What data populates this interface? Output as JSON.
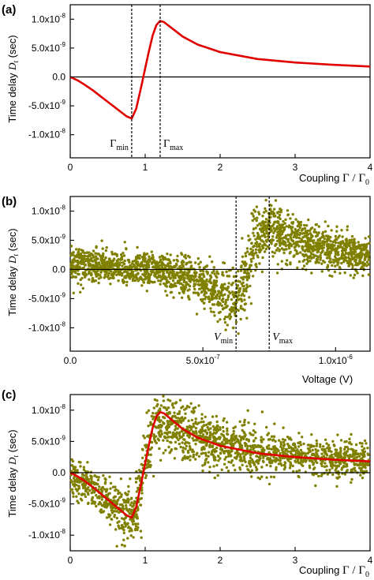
{
  "colors": {
    "curve": "#e00000",
    "points": "#808000",
    "axis": "#000000"
  },
  "chart_data": [
    {
      "panel": "(a)",
      "type": "line",
      "ylabel": "Time delay",
      "ylabel_symbol": "D",
      "ylabel_sub": "t",
      "ylabel_unit": "(sec)",
      "xlabel": "Coupling",
      "xlabel_symbol": "Γ / Γ",
      "xlabel_sub": "0",
      "xlim": [
        0,
        4
      ],
      "ylim": [
        -1.4e-08,
        1.25e-08
      ],
      "xticks": [
        {
          "v": 0,
          "label": "0"
        },
        {
          "v": 1,
          "label": "1"
        },
        {
          "v": 2,
          "label": "2"
        },
        {
          "v": 3,
          "label": "3"
        },
        {
          "v": 4,
          "label": "4"
        }
      ],
      "yticks": [
        {
          "v": 1e-08,
          "label": "1.0x10",
          "exp": "-8"
        },
        {
          "v": 5e-09,
          "label": "5.0x10",
          "exp": "-9"
        },
        {
          "v": 0,
          "label": "0.0",
          "exp": ""
        },
        {
          "v": -5e-09,
          "label": "-5.0x10",
          "exp": "-9"
        },
        {
          "v": -1e-08,
          "label": "-1.0x10",
          "exp": "-8"
        }
      ],
      "vlines": [
        {
          "x": 0.82,
          "label": "Γ",
          "sub": "min",
          "label_side": "left"
        },
        {
          "x": 1.2,
          "label": "Γ",
          "sub": "max",
          "label_side": "right"
        }
      ],
      "series": [
        {
          "style": "line",
          "x": [
            0,
            0.1,
            0.2,
            0.3,
            0.4,
            0.5,
            0.6,
            0.7,
            0.75,
            0.82,
            0.88,
            0.95,
            1.0,
            1.05,
            1.1,
            1.15,
            1.2,
            1.25,
            1.35,
            1.5,
            1.7,
            2.0,
            2.5,
            3.0,
            3.5,
            4.0
          ],
          "y": [
            0,
            -6e-10,
            -1.4e-09,
            -2.3e-09,
            -3.3e-09,
            -4.3e-09,
            -5.3e-09,
            -6.3e-09,
            -6.8e-09,
            -7.2e-09,
            -5.5e-09,
            -1.5e-09,
            1.5e-09,
            4.5e-09,
            7.2e-09,
            9e-09,
            9.7e-09,
            9.5e-09,
            8.5e-09,
            7e-09,
            5.6e-09,
            4.3e-09,
            3.1e-09,
            2.5e-09,
            2.1e-09,
            1.8e-09
          ]
        }
      ]
    },
    {
      "panel": "(b)",
      "type": "scatter",
      "ylabel": "Time delay",
      "ylabel_symbol": "D",
      "ylabel_sub": "t",
      "ylabel_unit": "(sec)",
      "xlabel": "Voltage (V)",
      "xlim": [
        0,
        1.13e-06
      ],
      "ylim": [
        -1.4e-08,
        1.25e-08
      ],
      "xticks": [
        {
          "v": 0,
          "label": "0.0",
          "exp": ""
        },
        {
          "v": 5e-07,
          "label": "5.0x10",
          "exp": "-7"
        },
        {
          "v": 1e-06,
          "label": "1.0x10",
          "exp": "-6"
        }
      ],
      "yticks": [
        {
          "v": 1e-08,
          "label": "1.0x10",
          "exp": "-8"
        },
        {
          "v": 5e-09,
          "label": "5.0x10",
          "exp": "-9"
        },
        {
          "v": 0,
          "label": "0.0",
          "exp": ""
        },
        {
          "v": -5e-09,
          "label": "-5.0x10",
          "exp": "-9"
        },
        {
          "v": -1e-08,
          "label": "-1.0x10",
          "exp": "-8"
        }
      ],
      "vlines": [
        {
          "x": 6.25e-07,
          "label": "V",
          "sub": "min",
          "label_side": "left"
        },
        {
          "x": 7.5e-07,
          "label": "V",
          "sub": "max",
          "label_side": "right"
        }
      ],
      "series": [
        {
          "style": "points",
          "x": [
            0,
            5e-08,
            1e-07,
            1.5e-07,
            2e-07,
            2.5e-07,
            3e-07,
            3.5e-07,
            4e-07,
            4.5e-07,
            5e-07,
            5.5e-07,
            6e-07,
            6.25e-07,
            6.5e-07,
            6.75e-07,
            7e-07,
            7.25e-07,
            7.5e-07,
            7.75e-07,
            8e-07,
            8.5e-07,
            9e-07,
            9.5e-07,
            1e-06,
            1.05e-06,
            1.1e-06,
            1.13e-06
          ],
          "y": [
            1e-09,
            8e-10,
            6e-10,
            4e-10,
            2e-10,
            0,
            -2e-10,
            -5e-10,
            -1e-09,
            -1.6e-09,
            -2.5e-09,
            -3.6e-09,
            -5e-09,
            -6e-09,
            -3e-09,
            1e-09,
            4.5e-09,
            7e-09,
            7.4e-09,
            6.8e-09,
            6e-09,
            5e-09,
            4.2e-09,
            3.6e-09,
            3.1e-09,
            2.7e-09,
            2.4e-09,
            2.3e-09
          ],
          "spread": [
            2.6e-09,
            2.6e-09,
            2.6e-09,
            2.6e-09,
            2.6e-09,
            2.6e-09,
            2.6e-09,
            2.8e-09,
            3e-09,
            3.2e-09,
            3.5e-09,
            3.8e-09,
            4.2e-09,
            4.5e-09,
            5e-09,
            5e-09,
            4.8e-09,
            4.5e-09,
            4.3e-09,
            4e-09,
            3.8e-09,
            3.5e-09,
            3.3e-09,
            3.1e-09,
            3e-09,
            2.9e-09,
            2.8e-09,
            2.8e-09
          ],
          "count": 2200
        }
      ]
    },
    {
      "panel": "(c)",
      "type": "scatter",
      "ylabel": "Time delay",
      "ylabel_symbol": "D",
      "ylabel_sub": "t",
      "ylabel_unit": "(sec)",
      "xlabel": "Coupling",
      "xlabel_symbol": "Γ / Γ",
      "xlabel_sub": "0",
      "xlim": [
        0,
        4
      ],
      "ylim": [
        -1.25e-08,
        1.25e-08
      ],
      "xticks": [
        {
          "v": 0,
          "label": "0"
        },
        {
          "v": 1,
          "label": "1"
        },
        {
          "v": 2,
          "label": "2"
        },
        {
          "v": 3,
          "label": "3"
        },
        {
          "v": 4,
          "label": "4"
        }
      ],
      "yticks": [
        {
          "v": 1e-08,
          "label": "1.0x10",
          "exp": "-8"
        },
        {
          "v": 5e-09,
          "label": "5.0x10",
          "exp": "-9"
        },
        {
          "v": 0,
          "label": "0.0",
          "exp": ""
        },
        {
          "v": -5e-09,
          "label": "-5.0x10",
          "exp": "-9"
        },
        {
          "v": -1e-08,
          "label": "-1.0x10",
          "exp": "-8"
        }
      ],
      "vlines": [],
      "series": [
        {
          "style": "points",
          "x": [
            0,
            0.1,
            0.2,
            0.3,
            0.4,
            0.5,
            0.6,
            0.7,
            0.8,
            0.9,
            1.0,
            1.1,
            1.2,
            1.3,
            1.5,
            1.7,
            2.0,
            2.5,
            3.0,
            3.5,
            4.0
          ],
          "y": [
            -5e-10,
            -1e-09,
            -1.8e-09,
            -2.6e-09,
            -3.5e-09,
            -4.4e-09,
            -5.3e-09,
            -6.2e-09,
            -7e-09,
            -5e-09,
            2e-09,
            6.5e-09,
            8e-09,
            7.6e-09,
            6.5e-09,
            5.5e-09,
            4.4e-09,
            3.4e-09,
            2.8e-09,
            2.4e-09,
            2.2e-09
          ],
          "spread": [
            3e-09,
            3e-09,
            3e-09,
            3e-09,
            3.2e-09,
            3.4e-09,
            3.6e-09,
            3.8e-09,
            4e-09,
            4.5e-09,
            5e-09,
            5e-09,
            4.6e-09,
            4.4e-09,
            4.2e-09,
            3.9e-09,
            3.5e-09,
            3.1e-09,
            2.9e-09,
            2.7e-09,
            2.6e-09
          ],
          "count": 1800
        },
        {
          "style": "line",
          "x": [
            0,
            0.1,
            0.2,
            0.3,
            0.4,
            0.5,
            0.6,
            0.7,
            0.75,
            0.82,
            0.88,
            0.95,
            1.0,
            1.05,
            1.1,
            1.15,
            1.2,
            1.25,
            1.35,
            1.5,
            1.7,
            2.0,
            2.5,
            3.0,
            3.5,
            4.0
          ],
          "y": [
            0,
            -6e-10,
            -1.4e-09,
            -2.3e-09,
            -3.3e-09,
            -4.3e-09,
            -5.3e-09,
            -6.3e-09,
            -6.8e-09,
            -7.2e-09,
            -5.5e-09,
            -1.5e-09,
            1.5e-09,
            4.5e-09,
            7.2e-09,
            9e-09,
            9.7e-09,
            9.5e-09,
            8.5e-09,
            7e-09,
            5.6e-09,
            4.3e-09,
            3.1e-09,
            2.5e-09,
            2.1e-09,
            1.8e-09
          ]
        }
      ]
    }
  ]
}
